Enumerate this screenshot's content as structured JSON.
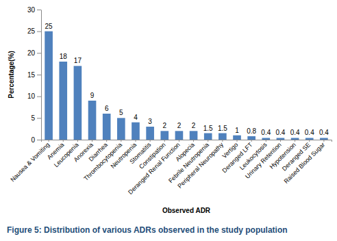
{
  "chart_data": {
    "type": "bar",
    "title": "Figure 5: Distribution of various ADRs observed in the study population",
    "x_label": "Observed ADR",
    "y_label": "Percentage(%)",
    "categories": [
      "Nausea & Vomiting",
      "Anemia",
      "Leucopenia",
      "Anorexia",
      "Diarrhea",
      "Thrombocytopenia",
      "Neutropenia",
      "Stomatitis",
      "Constipation",
      "Deranged Renal Function",
      "Alopecia",
      "Febrile Neutropenia",
      "Peripheral Neuropathy",
      "Vertigo",
      "Deranged LFT",
      "Leukocytosis",
      "Urinary Retention",
      "Hypotension",
      "Deranged SE",
      "Raised Blood Sugar"
    ],
    "values": [
      25,
      18,
      17,
      9,
      6,
      5,
      4,
      3,
      2,
      2,
      2,
      1.5,
      1.5,
      1,
      0.8,
      0.4,
      0.4,
      0.4,
      0.4,
      0.4
    ],
    "color": "#4f81bd",
    "ylim": [
      0,
      30
    ],
    "yticks": [
      0,
      5,
      10,
      15,
      20,
      25,
      30
    ],
    "grid": false,
    "data_labels": true
  }
}
